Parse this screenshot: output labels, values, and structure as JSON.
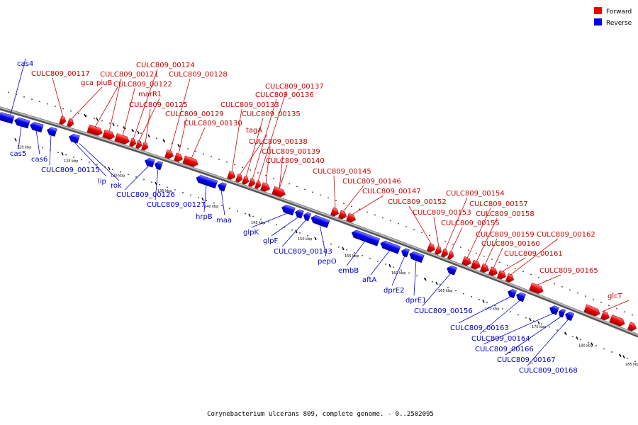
{
  "caption": "Corynebacterium ulcerans 809, complete genome. - 0..2502095",
  "legend": [
    {
      "label": "Forward",
      "color": "#ee0000"
    },
    {
      "label": "Reverse",
      "color": "#0000ee"
    }
  ],
  "colors": {
    "forward": "#ee0000",
    "reverse": "#0000ee",
    "forward_label": "#cc0000",
    "reverse_label": "#0000cc"
  },
  "ticks": [
    {
      "label": "120 kbp",
      "kbp": 120
    },
    {
      "label": "125 kbp",
      "kbp": 125
    },
    {
      "label": "130 kbp",
      "kbp": 130
    },
    {
      "label": "135 kbp",
      "kbp": 135
    },
    {
      "label": "140 kbp",
      "kbp": 140
    },
    {
      "label": "145 kbp",
      "kbp": 145
    },
    {
      "label": "150 kbp",
      "kbp": 150
    },
    {
      "label": "155 kbp",
      "kbp": 155
    },
    {
      "label": "160 kbp",
      "kbp": 160
    },
    {
      "label": "165 kbp",
      "kbp": 165
    },
    {
      "label": "170 kbp",
      "kbp": 170
    },
    {
      "label": "175 kbp",
      "kbp": 175
    },
    {
      "label": "180 kbp",
      "kbp": 180
    },
    {
      "label": "185 kbp",
      "kbp": 185
    }
  ],
  "forward_genes": [
    "CULC809_00117",
    "gca",
    "piuB",
    "CULC809_00121",
    "CULC809_00122",
    "CULC809_00124",
    "marR1",
    "CULC809_00125",
    "CULC809_00128",
    "CULC809_00129",
    "CULC809_00130",
    "CULC809_00133",
    "tagA",
    "CULC809_00135",
    "CULC809_00136",
    "CULC809_00137",
    "CULC809_00138",
    "CULC809_00139",
    "CULC809_00140",
    "CULC809_00145",
    "CULC809_00146",
    "CULC809_00147",
    "CULC809_00152",
    "CULC809_00153",
    "CULC809_00154",
    "CULC809_00155",
    "CULC809_00157",
    "CULC809_00158",
    "CULC809_00159",
    "CULC809_00160",
    "CULC809_00161",
    "CULC809_00162",
    "CULC809_00165",
    "glcT"
  ],
  "reverse_genes": [
    "cas4",
    "cas5",
    "cas6",
    "CULC809_00115",
    "lip",
    "rok",
    "CULC809_00126",
    "CULC809_00127",
    "hrpB",
    "maa",
    "glpK",
    "glpF",
    "CULC809_00143",
    "pepO",
    "embB",
    "aftA",
    "dprE2",
    "dprE1",
    "CULC809_00156",
    "CULC809_00163",
    "CULC809_00164",
    "CULC809_00166",
    "CULC809_00167",
    "CULC809_00168"
  ]
}
